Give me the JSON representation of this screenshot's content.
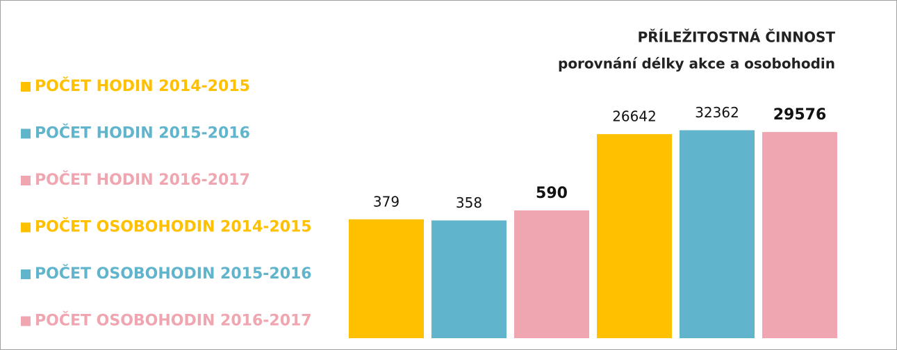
{
  "chart_data": {
    "type": "bar",
    "title": "PŘÍLEŽITOSTNÁ ČINNOST",
    "subtitle": "porovnání  délky akce a osobohodin",
    "log_scale": true,
    "ylim": [
      1,
      100000
    ],
    "legend": "left",
    "series": [
      {
        "name": "POČET HODIN 2014-2015",
        "color": "#ffc000",
        "values": [
          379
        ]
      },
      {
        "name": "POČET HODIN 2015-2016",
        "color": "#60b4cc",
        "values": [
          358
        ]
      },
      {
        "name": "POČET HODIN 2016-2017",
        "color": "#f0a6b0",
        "values": [
          590
        ],
        "label_bold": true
      },
      {
        "name": "POČET OSOBOHODIN 2014-2015",
        "color": "#ffc000",
        "values": [
          26642
        ]
      },
      {
        "name": "POČET OSOBOHODIN 2015-2016",
        "color": "#60b4cc",
        "values": [
          32362
        ]
      },
      {
        "name": "POČET OSOBOHODIN 2016-2017",
        "color": "#f0a6b0",
        "values": [
          29576
        ],
        "label_bold": true
      }
    ]
  }
}
